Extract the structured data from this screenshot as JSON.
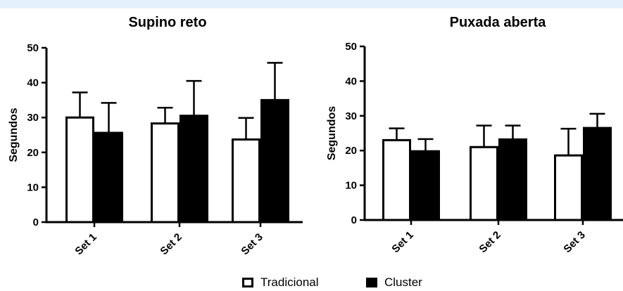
{
  "chart_data": [
    {
      "type": "bar",
      "title": "Supino reto",
      "ylabel": "Segundos",
      "xlabel": "",
      "ylim": [
        0,
        50
      ],
      "yticks": [
        0,
        10,
        20,
        30,
        40,
        50
      ],
      "categories": [
        "Set 1",
        "Set 2",
        "Set 3"
      ],
      "error_bars": "upper",
      "series": [
        {
          "name": "Tradicional",
          "fill": "#ffffff",
          "values": [
            30,
            28.3,
            23.7
          ],
          "errors": [
            7.2,
            4.5,
            6.2
          ]
        },
        {
          "name": "Cluster",
          "fill": "#000000",
          "values": [
            25.6,
            30.5,
            35
          ],
          "errors": [
            8.6,
            10,
            10.7
          ]
        }
      ]
    },
    {
      "type": "bar",
      "title": "Puxada aberta",
      "ylabel": "Segundos",
      "xlabel": "",
      "ylim": [
        0,
        50
      ],
      "yticks": [
        0,
        10,
        20,
        30,
        40,
        50
      ],
      "categories": [
        "Set 1",
        "Set 2",
        "Set 3"
      ],
      "error_bars": "upper",
      "series": [
        {
          "name": "Tradicional",
          "fill": "#ffffff",
          "values": [
            23,
            21,
            18.6
          ],
          "errors": [
            3.4,
            6.2,
            7.7
          ]
        },
        {
          "name": "Cluster",
          "fill": "#000000",
          "values": [
            19.8,
            23.2,
            26.5
          ],
          "errors": [
            3.5,
            4,
            4.1
          ]
        }
      ]
    }
  ],
  "legend": {
    "items": [
      {
        "label": "Tradicional",
        "fill": "#ffffff"
      },
      {
        "label": "Cluster",
        "fill": "#000000"
      }
    ]
  }
}
